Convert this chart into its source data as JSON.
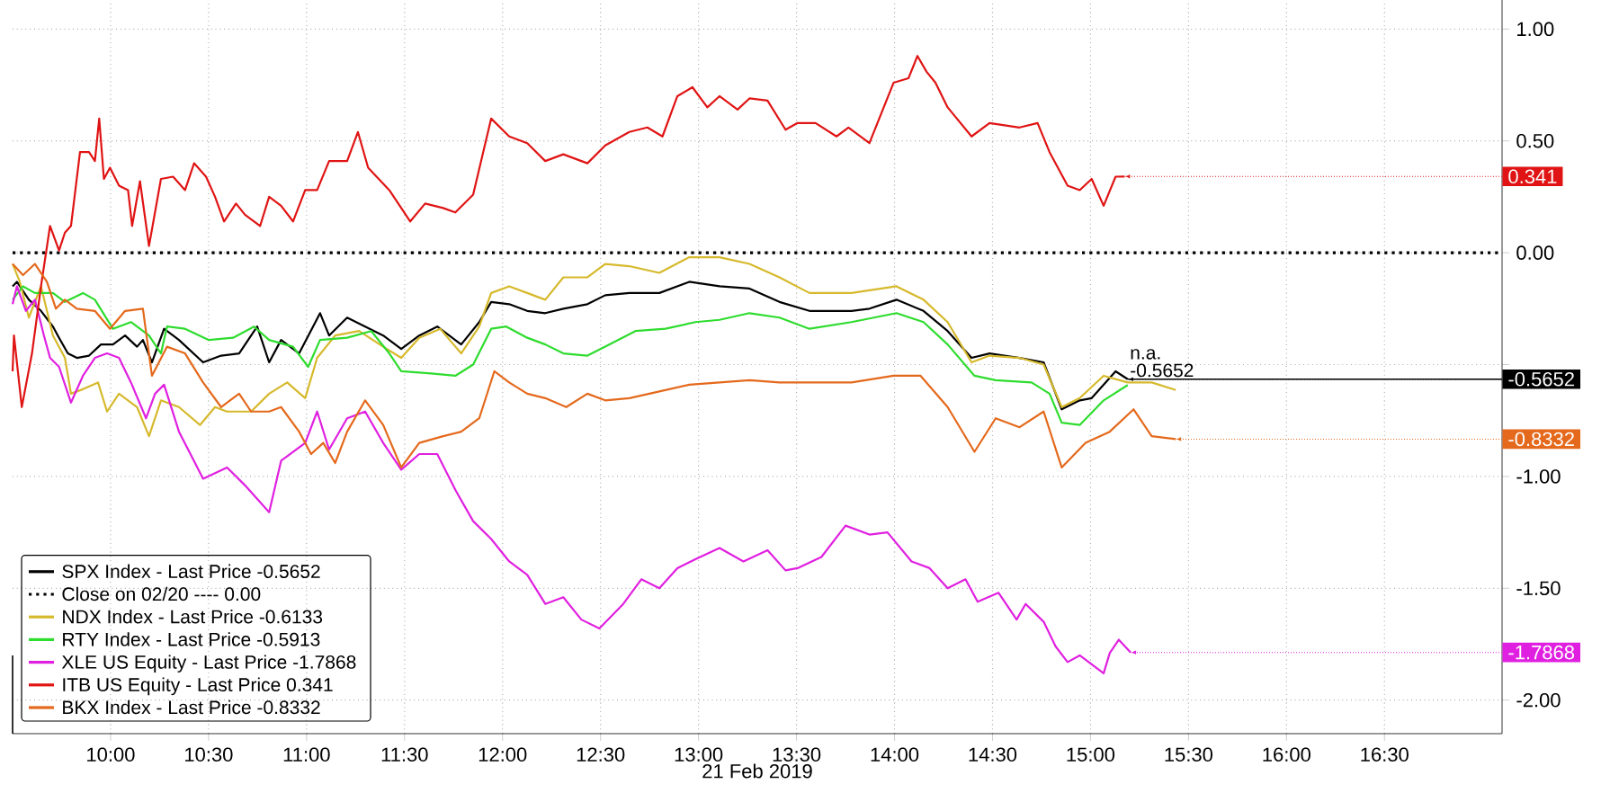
{
  "chart_data": {
    "type": "line",
    "xlabel": "21 Feb 2019",
    "xlim": [
      9.5,
      17.1
    ],
    "ylim": [
      -2.15,
      1.13
    ],
    "grid": true,
    "legend": "bottom left",
    "xticks": [
      {
        "value": 10,
        "label": "10:00"
      },
      {
        "value": 10.5,
        "label": "10:30"
      },
      {
        "value": 11,
        "label": "11:00"
      },
      {
        "value": 11.5,
        "label": "11:30"
      },
      {
        "value": 12,
        "label": "12:00"
      },
      {
        "value": 12.5,
        "label": "12:30"
      },
      {
        "value": 13,
        "label": "13:00"
      },
      {
        "value": 13.5,
        "label": "13:30"
      },
      {
        "value": 14,
        "label": "14:00"
      },
      {
        "value": 14.5,
        "label": "14:30"
      },
      {
        "value": 15,
        "label": "15:00"
      },
      {
        "value": 15.5,
        "label": "15:30"
      },
      {
        "value": 16,
        "label": "16:00"
      },
      {
        "value": 16.5,
        "label": "16:30"
      }
    ],
    "yticks": [
      {
        "value": 1,
        "label": "1.00"
      },
      {
        "value": 0.5,
        "label": "0.50"
      },
      {
        "value": 0,
        "label": "0.00"
      },
      {
        "value": -0.5,
        "label": null
      },
      {
        "value": -1,
        "label": "-1.00"
      },
      {
        "value": -1.5,
        "label": "-1.50"
      },
      {
        "value": -2,
        "label": "-2.00"
      }
    ],
    "series": [
      {
        "name": "SPX Index - Last Price -0.5652",
        "color": "#000000",
        "x": [
          9.5,
          9.522,
          9.583,
          9.645,
          9.706,
          9.737,
          9.782,
          9.828,
          9.89,
          9.951,
          10.012,
          10.074,
          10.135,
          10.165,
          10.211,
          10.273,
          10.349,
          10.472,
          10.564,
          10.656,
          10.748,
          10.809,
          10.87,
          10.962,
          11.069,
          11.115,
          11.207,
          11.299,
          11.391,
          11.483,
          11.575,
          11.667,
          11.789,
          11.881,
          11.942,
          12.034,
          12.126,
          12.218,
          12.31,
          12.433,
          12.524,
          12.647,
          12.8,
          12.953,
          13.107,
          13.26,
          13.413,
          13.566,
          13.78,
          13.872,
          14.01,
          14.148,
          14.271,
          14.393,
          14.485,
          14.638,
          14.761,
          14.853,
          14.945,
          15.006,
          15.128,
          15.19
        ],
        "values": [
          -0.15,
          -0.13,
          -0.21,
          -0.26,
          -0.33,
          -0.38,
          -0.45,
          -0.47,
          -0.46,
          -0.41,
          -0.41,
          -0.37,
          -0.42,
          -0.39,
          -0.49,
          -0.34,
          -0.39,
          -0.49,
          -0.46,
          -0.45,
          -0.33,
          -0.49,
          -0.39,
          -0.45,
          -0.27,
          -0.37,
          -0.29,
          -0.33,
          -0.37,
          -0.43,
          -0.37,
          -0.33,
          -0.41,
          -0.31,
          -0.22,
          -0.23,
          -0.26,
          -0.27,
          -0.25,
          -0.23,
          -0.19,
          -0.18,
          -0.18,
          -0.13,
          -0.15,
          -0.16,
          -0.22,
          -0.26,
          -0.26,
          -0.25,
          -0.21,
          -0.26,
          -0.35,
          -0.47,
          -0.45,
          -0.47,
          -0.49,
          -0.7,
          -0.66,
          -0.65,
          -0.53,
          -0.5652
        ]
      },
      {
        "name": "Close on 02/20 ---- 0.00",
        "color": "#000000",
        "line_style": "dotted",
        "x": [
          9.5,
          17.1
        ],
        "values": [
          0,
          0
        ]
      },
      {
        "name": "NDX Index - Last Price -0.6133",
        "color": "#d6b92c",
        "x": [
          9.5,
          9.537,
          9.583,
          9.645,
          9.706,
          9.767,
          9.798,
          9.859,
          9.936,
          9.982,
          10.043,
          10.135,
          10.196,
          10.257,
          10.349,
          10.456,
          10.533,
          10.594,
          10.717,
          10.809,
          10.901,
          10.993,
          11.054,
          11.146,
          11.268,
          11.391,
          11.483,
          11.575,
          11.682,
          11.789,
          11.881,
          11.942,
          12.034,
          12.126,
          12.218,
          12.31,
          12.433,
          12.524,
          12.647,
          12.8,
          12.953,
          13.107,
          13.26,
          13.413,
          13.566,
          13.78,
          14.01,
          14.148,
          14.271,
          14.393,
          14.485,
          14.638,
          14.761,
          14.853,
          14.945,
          15.067,
          15.19,
          15.312,
          15.435
        ],
        "values": [
          -0.05,
          -0.13,
          -0.29,
          -0.15,
          -0.37,
          -0.47,
          -0.63,
          -0.61,
          -0.58,
          -0.71,
          -0.63,
          -0.69,
          -0.82,
          -0.66,
          -0.69,
          -0.77,
          -0.69,
          -0.71,
          -0.71,
          -0.63,
          -0.58,
          -0.65,
          -0.47,
          -0.37,
          -0.35,
          -0.42,
          -0.47,
          -0.38,
          -0.34,
          -0.45,
          -0.33,
          -0.18,
          -0.15,
          -0.18,
          -0.21,
          -0.11,
          -0.11,
          -0.05,
          -0.06,
          -0.09,
          -0.02,
          -0.02,
          -0.05,
          -0.11,
          -0.18,
          -0.18,
          -0.15,
          -0.21,
          -0.31,
          -0.49,
          -0.46,
          -0.47,
          -0.5,
          -0.69,
          -0.65,
          -0.55,
          -0.58,
          -0.58,
          -0.6133
        ]
      },
      {
        "name": "RTY Index - Last Price -0.5913",
        "color": "#2edc2e",
        "x": [
          9.5,
          9.553,
          9.614,
          9.706,
          9.767,
          9.859,
          9.92,
          10.012,
          10.104,
          10.196,
          10.257,
          10.288,
          10.38,
          10.502,
          10.625,
          10.732,
          10.809,
          10.931,
          11.008,
          11.069,
          11.207,
          11.33,
          11.422,
          11.483,
          11.636,
          11.759,
          11.85,
          11.942,
          12.019,
          12.126,
          12.218,
          12.31,
          12.433,
          12.524,
          12.678,
          12.831,
          12.984,
          13.107,
          13.26,
          13.413,
          13.566,
          13.78,
          14.01,
          14.148,
          14.271,
          14.408,
          14.516,
          14.699,
          14.791,
          14.853,
          14.945,
          15.067,
          15.19
        ],
        "values": [
          -0.21,
          -0.15,
          -0.18,
          -0.18,
          -0.22,
          -0.18,
          -0.21,
          -0.34,
          -0.31,
          -0.37,
          -0.45,
          -0.33,
          -0.34,
          -0.39,
          -0.38,
          -0.33,
          -0.39,
          -0.42,
          -0.51,
          -0.39,
          -0.38,
          -0.35,
          -0.45,
          -0.53,
          -0.54,
          -0.55,
          -0.5,
          -0.34,
          -0.33,
          -0.38,
          -0.41,
          -0.45,
          -0.46,
          -0.42,
          -0.35,
          -0.34,
          -0.31,
          -0.3,
          -0.27,
          -0.29,
          -0.34,
          -0.31,
          -0.27,
          -0.31,
          -0.41,
          -0.55,
          -0.57,
          -0.58,
          -0.63,
          -0.76,
          -0.77,
          -0.66,
          -0.5913
        ]
      },
      {
        "name": "XLE US Equity - Last Price -1.7868",
        "color": "#e020e0",
        "x": [
          9.5,
          9.522,
          9.568,
          9.614,
          9.66,
          9.691,
          9.737,
          9.798,
          9.859,
          9.92,
          9.982,
          10.043,
          10.104,
          10.181,
          10.227,
          10.273,
          10.349,
          10.472,
          10.594,
          10.686,
          10.809,
          10.87,
          10.993,
          11.054,
          11.115,
          11.207,
          11.299,
          11.391,
          11.483,
          11.575,
          11.667,
          11.759,
          11.85,
          11.942,
          12.034,
          12.126,
          12.218,
          12.31,
          12.402,
          12.494,
          12.616,
          12.708,
          12.8,
          12.892,
          12.984,
          13.107,
          13.229,
          13.352,
          13.444,
          13.505,
          13.627,
          13.75,
          13.872,
          13.964,
          14.087,
          14.179,
          14.271,
          14.362,
          14.424,
          14.531,
          14.623,
          14.669,
          14.761,
          14.822,
          14.883,
          14.945,
          15.006,
          15.067,
          15.098,
          15.144,
          15.205
        ],
        "values": [
          -0.23,
          -0.15,
          -0.26,
          -0.21,
          -0.37,
          -0.47,
          -0.51,
          -0.67,
          -0.55,
          -0.47,
          -0.45,
          -0.47,
          -0.58,
          -0.74,
          -0.63,
          -0.59,
          -0.8,
          -1.01,
          -0.96,
          -1.04,
          -1.16,
          -0.93,
          -0.85,
          -0.71,
          -0.88,
          -0.74,
          -0.71,
          -0.85,
          -0.97,
          -0.9,
          -0.9,
          -1.06,
          -1.2,
          -1.28,
          -1.38,
          -1.44,
          -1.57,
          -1.54,
          -1.64,
          -1.68,
          -1.57,
          -1.46,
          -1.5,
          -1.41,
          -1.37,
          -1.32,
          -1.38,
          -1.33,
          -1.42,
          -1.41,
          -1.36,
          -1.22,
          -1.26,
          -1.25,
          -1.38,
          -1.41,
          -1.5,
          -1.46,
          -1.56,
          -1.52,
          -1.64,
          -1.57,
          -1.65,
          -1.76,
          -1.83,
          -1.8,
          -1.84,
          -1.88,
          -1.79,
          -1.73,
          -1.7868
        ]
      },
      {
        "name": "ITB US Equity - Last Price 0.341",
        "color": "#e01414",
        "x": [
          9.5,
          9.507,
          9.547,
          9.599,
          9.645,
          9.691,
          9.737,
          9.767,
          9.798,
          9.844,
          9.89,
          9.92,
          9.942,
          9.966,
          9.997,
          10.043,
          10.089,
          10.11,
          10.15,
          10.196,
          10.257,
          10.319,
          10.38,
          10.426,
          10.487,
          10.533,
          10.579,
          10.64,
          10.686,
          10.763,
          10.809,
          10.87,
          10.931,
          10.993,
          11.054,
          11.115,
          11.207,
          11.262,
          11.314,
          11.422,
          11.529,
          11.605,
          11.697,
          11.759,
          11.85,
          11.942,
          12.034,
          12.126,
          12.218,
          12.31,
          12.433,
          12.524,
          12.647,
          12.739,
          12.816,
          12.892,
          12.969,
          13.045,
          13.107,
          13.199,
          13.26,
          13.352,
          13.444,
          13.505,
          13.597,
          13.704,
          13.765,
          13.872,
          13.995,
          14.071,
          14.117,
          14.163,
          14.209,
          14.271,
          14.393,
          14.485,
          14.638,
          14.73,
          14.791,
          14.883,
          14.945,
          15.006,
          15.067,
          15.128,
          15.174
        ],
        "values": [
          -0.53,
          -0.37,
          -0.69,
          -0.45,
          -0.15,
          0.12,
          0.01,
          0.09,
          0.12,
          0.45,
          0.45,
          0.41,
          0.6,
          0.33,
          0.38,
          0.3,
          0.28,
          0.12,
          0.32,
          0.03,
          0.33,
          0.34,
          0.28,
          0.4,
          0.34,
          0.25,
          0.14,
          0.22,
          0.17,
          0.12,
          0.25,
          0.21,
          0.14,
          0.28,
          0.28,
          0.41,
          0.41,
          0.54,
          0.38,
          0.28,
          0.14,
          0.22,
          0.2,
          0.18,
          0.26,
          0.6,
          0.52,
          0.49,
          0.41,
          0.44,
          0.4,
          0.48,
          0.54,
          0.56,
          0.52,
          0.7,
          0.74,
          0.65,
          0.7,
          0.64,
          0.69,
          0.68,
          0.55,
          0.58,
          0.58,
          0.52,
          0.56,
          0.49,
          0.76,
          0.78,
          0.88,
          0.81,
          0.76,
          0.65,
          0.52,
          0.58,
          0.56,
          0.58,
          0.45,
          0.3,
          0.28,
          0.33,
          0.21,
          0.34,
          0.341
        ]
      },
      {
        "name": "BKX Index - Last Price -0.8332",
        "color": "#e4691c",
        "x": [
          9.5,
          9.553,
          9.614,
          9.675,
          9.721,
          9.767,
          9.828,
          9.92,
          9.997,
          10.074,
          10.165,
          10.211,
          10.288,
          10.38,
          10.472,
          10.564,
          10.656,
          10.717,
          10.809,
          10.87,
          10.962,
          11.023,
          11.085,
          11.146,
          11.207,
          11.299,
          11.391,
          11.483,
          11.575,
          11.697,
          11.789,
          11.881,
          11.958,
          12.034,
          12.126,
          12.218,
          12.325,
          12.433,
          12.524,
          12.647,
          12.8,
          12.953,
          13.107,
          13.26,
          13.413,
          13.597,
          13.78,
          13.995,
          14.133,
          14.271,
          14.408,
          14.516,
          14.638,
          14.761,
          14.853,
          14.975,
          15.098,
          15.22,
          15.312,
          15.435
        ],
        "values": [
          -0.05,
          -0.1,
          -0.05,
          -0.13,
          -0.25,
          -0.21,
          -0.25,
          -0.26,
          -0.34,
          -0.26,
          -0.25,
          -0.55,
          -0.42,
          -0.45,
          -0.58,
          -0.69,
          -0.63,
          -0.71,
          -0.71,
          -0.69,
          -0.8,
          -0.9,
          -0.85,
          -0.94,
          -0.8,
          -0.66,
          -0.77,
          -0.96,
          -0.85,
          -0.82,
          -0.8,
          -0.74,
          -0.53,
          -0.58,
          -0.63,
          -0.65,
          -0.69,
          -0.63,
          -0.66,
          -0.65,
          -0.62,
          -0.59,
          -0.58,
          -0.57,
          -0.58,
          -0.58,
          -0.58,
          -0.55,
          -0.55,
          -0.69,
          -0.89,
          -0.74,
          -0.78,
          -0.71,
          -0.96,
          -0.85,
          -0.8,
          -0.7,
          -0.82,
          -0.8332
        ]
      }
    ],
    "ref_lines": [
      {
        "axis": "y",
        "value": -0.5652,
        "label": "-0.5652",
        "color": "#000000"
      }
    ],
    "annotations": [
      "n.a.",
      {
        "text": "-0.5652",
        "x": 15.19,
        "y": -0.5652
      },
      {
        "text": "0.341",
        "x": 15.174,
        "y": 0.341
      },
      {
        "text": "-0.8332",
        "x": 15.435,
        "y": -0.8332
      },
      {
        "text": "-1.7868",
        "x": 15.205,
        "y": -1.7868
      }
    ]
  }
}
